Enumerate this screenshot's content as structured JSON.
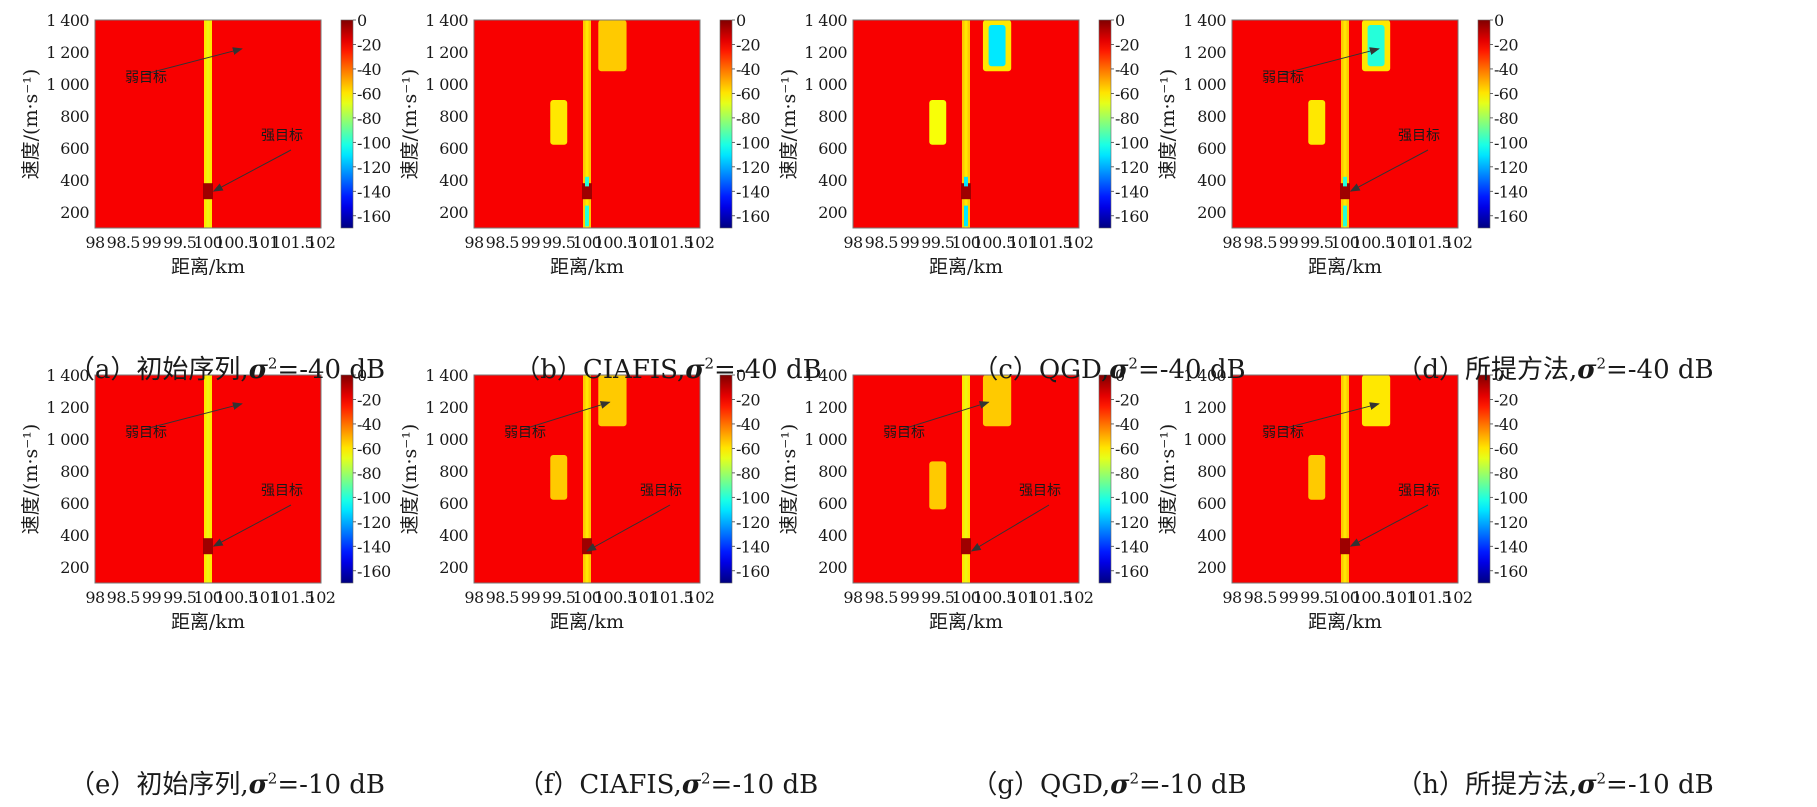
{
  "figure": {
    "colorbar": {
      "colormap": "jet",
      "range": [
        -170,
        0
      ],
      "tick_labels": [
        "0",
        "-20",
        "-40",
        "-60",
        "-80",
        "-100",
        "-120",
        "-140",
        "-160"
      ]
    },
    "arrow_labels": {
      "weak": "弱目标",
      "strong": "强目标"
    }
  },
  "chart_data": [
    {
      "type": "heatmap",
      "panel": "a",
      "caption": {
        "prefix": "（a）初始序列,",
        "sigma": "σ",
        "sup": "2",
        "suffix": "=-40 dB"
      },
      "xlabel": "距离/km",
      "ylabel": "速度/(m·s⁻¹)",
      "xticks": [
        "98",
        "98.5",
        "99",
        "99.5",
        "100",
        "100.5",
        "101",
        "101.5",
        "102"
      ],
      "yticks": [
        "200",
        "400",
        "600",
        "800",
        "1 000",
        "1 200",
        "1 400"
      ],
      "xlim": [
        98,
        102
      ],
      "ylim": [
        100,
        1400
      ],
      "background_db": -20,
      "clutter_ridge": {
        "x": 100,
        "level_db": -60,
        "notch_db": -5
      },
      "regions": [],
      "arrows": [
        {
          "label": "弱目标",
          "to": [
            100.6,
            1220
          ]
        },
        {
          "label": "强目标",
          "to": [
            100.1,
            330
          ]
        }
      ]
    },
    {
      "type": "heatmap",
      "panel": "b",
      "caption": {
        "prefix": "（b）CIAFIS,",
        "sigma": "σ",
        "sup": "2",
        "suffix": "=-40 dB"
      },
      "xlabel": "距离/km",
      "ylabel": "速度/(m·s⁻¹)",
      "xticks": [
        "98",
        "98.5",
        "99",
        "99.5",
        "100",
        "100.5",
        "101",
        "101.5",
        "102"
      ],
      "yticks": [
        "200",
        "400",
        "600",
        "800",
        "1 000",
        "1 200",
        "1 400"
      ],
      "xlim": [
        98,
        102
      ],
      "ylim": [
        100,
        1400
      ],
      "background_db": -20,
      "clutter_ridge": {
        "x": 100,
        "level_db": -55,
        "notch_db": -5,
        "cores_db": -100
      },
      "regions": [
        {
          "x": [
            100.2,
            100.7
          ],
          "y": [
            1080,
            1400
          ],
          "level_db": -55
        },
        {
          "x": [
            99.35,
            99.65
          ],
          "y": [
            620,
            900
          ],
          "level_db": -60
        }
      ],
      "arrows": []
    },
    {
      "type": "heatmap",
      "panel": "c",
      "caption": {
        "prefix": "（c）QGD,",
        "sigma": "σ",
        "sup": "2",
        "suffix": "=-40 dB"
      },
      "xlabel": "距离/km",
      "ylabel": "速度/(m·s⁻¹)",
      "xticks": [
        "98",
        "98.5",
        "99",
        "99.5",
        "100",
        "100.5",
        "101",
        "101.5",
        "102"
      ],
      "yticks": [
        "200",
        "400",
        "600",
        "800",
        "1 000",
        "1 200",
        "1 400"
      ],
      "xlim": [
        98,
        102
      ],
      "ylim": [
        100,
        1400
      ],
      "background_db": -20,
      "clutter_ridge": {
        "x": 100,
        "level_db": -55,
        "notch_db": -5,
        "cores_db": -110
      },
      "regions": [
        {
          "x": [
            100.3,
            100.8
          ],
          "y": [
            1080,
            1400
          ],
          "level_db": -60,
          "core_db": -110
        },
        {
          "x": [
            99.35,
            99.65
          ],
          "y": [
            620,
            900
          ],
          "level_db": -65
        }
      ],
      "arrows": []
    },
    {
      "type": "heatmap",
      "panel": "d",
      "caption": {
        "prefix": "（d）所提方法,",
        "sigma": "σ",
        "sup": "2",
        "suffix": "=-40 dB"
      },
      "xlabel": "距离/km",
      "ylabel": "速度/(m·s⁻¹)",
      "xticks": [
        "98",
        "98.5",
        "99",
        "99.5",
        "100",
        "100.5",
        "101",
        "101.5",
        "102"
      ],
      "yticks": [
        "200",
        "400",
        "600",
        "800",
        "1 000",
        "1 200",
        "1 400"
      ],
      "xlim": [
        98,
        102
      ],
      "ylim": [
        100,
        1400
      ],
      "background_db": -20,
      "clutter_ridge": {
        "x": 100,
        "level_db": -55,
        "notch_db": -5,
        "cores_db": -100
      },
      "regions": [
        {
          "x": [
            100.3,
            100.8
          ],
          "y": [
            1080,
            1400
          ],
          "level_db": -60,
          "core_db": -100
        },
        {
          "x": [
            99.35,
            99.65
          ],
          "y": [
            620,
            900
          ],
          "level_db": -60
        }
      ],
      "arrows": [
        {
          "label": "弱目标",
          "to": [
            100.6,
            1220
          ]
        },
        {
          "label": "强目标",
          "to": [
            100.1,
            330
          ]
        }
      ]
    },
    {
      "type": "heatmap",
      "panel": "e",
      "caption": {
        "prefix": "（e）初始序列,",
        "sigma": "σ",
        "sup": "2",
        "suffix": "=-10 dB"
      },
      "xlabel": "距离/km",
      "ylabel": "速度/(m·s⁻¹)",
      "xticks": [
        "98",
        "98.5",
        "99",
        "99.5",
        "100",
        "100.5",
        "101",
        "101.5",
        "102"
      ],
      "yticks": [
        "200",
        "400",
        "600",
        "800",
        "1 000",
        "1 200",
        "1 400"
      ],
      "xlim": [
        98,
        102
      ],
      "ylim": [
        100,
        1400
      ],
      "background_db": -20,
      "clutter_ridge": {
        "x": 100,
        "level_db": -60,
        "notch_db": -5
      },
      "regions": [],
      "arrows": [
        {
          "label": "弱目标",
          "to": [
            100.6,
            1220
          ]
        },
        {
          "label": "强目标",
          "to": [
            100.1,
            330
          ]
        }
      ]
    },
    {
      "type": "heatmap",
      "panel": "f",
      "caption": {
        "prefix": "（f）CIAFIS,",
        "sigma": "σ",
        "sup": "2",
        "suffix": "=-10 dB"
      },
      "xlabel": "距离/km",
      "ylabel": "速度/(m·s⁻¹)",
      "xticks": [
        "98",
        "98.5",
        "99",
        "99.5",
        "100",
        "100.5",
        "101",
        "101.5",
        "102"
      ],
      "yticks": [
        "200",
        "400",
        "600",
        "800",
        "1 000",
        "1 200",
        "1 400"
      ],
      "xlim": [
        98,
        102
      ],
      "ylim": [
        100,
        1400
      ],
      "background_db": -20,
      "clutter_ridge": {
        "x": 100,
        "level_db": -55,
        "notch_db": -5
      },
      "regions": [
        {
          "x": [
            100.2,
            100.7
          ],
          "y": [
            1080,
            1400
          ],
          "level_db": -55
        },
        {
          "x": [
            99.35,
            99.65
          ],
          "y": [
            620,
            900
          ],
          "level_db": -55
        }
      ],
      "arrows": [
        {
          "label": "弱目标",
          "to": [
            100.4,
            1230
          ]
        },
        {
          "label": "强目标",
          "to": [
            100.0,
            300
          ]
        }
      ]
    },
    {
      "type": "heatmap",
      "panel": "g",
      "caption": {
        "prefix": "（g）QGD,",
        "sigma": "σ",
        "sup": "2",
        "suffix": "=-10 dB"
      },
      "xlabel": "距离/km",
      "ylabel": "速度/(m·s⁻¹)",
      "xticks": [
        "98",
        "98.5",
        "99",
        "99.5",
        "100",
        "100.5",
        "101",
        "101.5",
        "102"
      ],
      "yticks": [
        "200",
        "400",
        "600",
        "800",
        "1 000",
        "1 200",
        "1 400"
      ],
      "xlim": [
        98,
        102
      ],
      "ylim": [
        100,
        1400
      ],
      "background_db": -20,
      "clutter_ridge": {
        "x": 100,
        "level_db": -60,
        "notch_db": -5
      },
      "regions": [
        {
          "x": [
            100.3,
            100.8
          ],
          "y": [
            1080,
            1400
          ],
          "level_db": -55
        },
        {
          "x": [
            99.35,
            99.65
          ],
          "y": [
            560,
            860
          ],
          "level_db": -55
        }
      ],
      "arrows": [
        {
          "label": "弱目标",
          "to": [
            100.4,
            1230
          ]
        },
        {
          "label": "强目标",
          "to": [
            100.1,
            300
          ]
        }
      ]
    },
    {
      "type": "heatmap",
      "panel": "h",
      "caption": {
        "prefix": "（h）所提方法,",
        "sigma": "σ",
        "sup": "2",
        "suffix": "=-10 dB"
      },
      "xlabel": "距离/km",
      "ylabel": "速度/(m·s⁻¹)",
      "xticks": [
        "98",
        "98.5",
        "99",
        "99.5",
        "100",
        "100.5",
        "101",
        "101.5",
        "102"
      ],
      "yticks": [
        "200",
        "400",
        "600",
        "800",
        "1 000",
        "1 200",
        "1 400"
      ],
      "xlim": [
        98,
        102
      ],
      "ylim": [
        100,
        1400
      ],
      "background_db": -20,
      "clutter_ridge": {
        "x": 100,
        "level_db": -55,
        "notch_db": -5
      },
      "regions": [
        {
          "x": [
            100.3,
            100.8
          ],
          "y": [
            1080,
            1400
          ],
          "level_db": -60
        },
        {
          "x": [
            99.35,
            99.65
          ],
          "y": [
            620,
            900
          ],
          "level_db": -55
        }
      ],
      "arrows": [
        {
          "label": "弱目标",
          "to": [
            100.6,
            1220
          ]
        },
        {
          "label": "强目标",
          "to": [
            100.1,
            330
          ]
        }
      ]
    }
  ]
}
